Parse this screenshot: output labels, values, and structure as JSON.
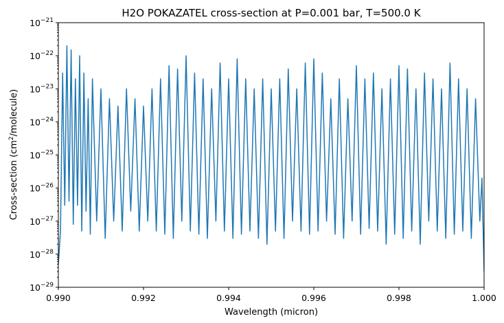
{
  "chart_data": {
    "type": "line",
    "title": "H2O POKAZATEL cross-section at P=0.001 bar, T=500.0 K",
    "xlabel": "Wavelength (micron)",
    "ylabel_main": "Cross-section (cm",
    "ylabel_sup": "2",
    "ylabel_tail": "/molecule)",
    "xlim": [
      0.99,
      1.0
    ],
    "ylim": [
      1e-29,
      1e-21
    ],
    "yscale": "log",
    "grid": false,
    "line_color": "#1f77b4",
    "x_ticks": [
      {
        "value": 0.99,
        "label": "0.990"
      },
      {
        "value": 0.992,
        "label": "0.992"
      },
      {
        "value": 0.994,
        "label": "0.994"
      },
      {
        "value": 0.996,
        "label": "0.996"
      },
      {
        "value": 0.998,
        "label": "0.998"
      },
      {
        "value": 1.0,
        "label": "1.000"
      }
    ],
    "y_ticks": [
      {
        "exp": -29,
        "base": "10",
        "sup": "−29"
      },
      {
        "exp": -28,
        "base": "10",
        "sup": "−28"
      },
      {
        "exp": -27,
        "base": "10",
        "sup": "−27"
      },
      {
        "exp": -26,
        "base": "10",
        "sup": "−26"
      },
      {
        "exp": -25,
        "base": "10",
        "sup": "−25"
      },
      {
        "exp": -24,
        "base": "10",
        "sup": "−24"
      },
      {
        "exp": -23,
        "base": "10",
        "sup": "−23"
      },
      {
        "exp": -22,
        "base": "10",
        "sup": "−22"
      },
      {
        "exp": -21,
        "base": "10",
        "sup": "−21"
      }
    ],
    "series": [
      {
        "x": [
          0.99,
          0.99005,
          0.9901,
          0.99015,
          0.9902,
          0.99025,
          0.9903,
          0.99035,
          0.9904,
          0.99045,
          0.9905,
          0.99055,
          0.9906,
          0.99065,
          0.9907,
          0.99075,
          0.9908,
          0.9909,
          0.991,
          0.9911,
          0.9912,
          0.9913,
          0.9914,
          0.9915,
          0.9916,
          0.9917,
          0.9918,
          0.9919,
          0.992,
          0.9921,
          0.9922,
          0.9923,
          0.9924,
          0.9925,
          0.9926,
          0.9927,
          0.9928,
          0.9929,
          0.993,
          0.9931,
          0.9932,
          0.9933,
          0.9934,
          0.9935,
          0.9936,
          0.9937,
          0.9938,
          0.9939,
          0.994,
          0.9941,
          0.9942,
          0.9943,
          0.9944,
          0.9945,
          0.9946,
          0.9947,
          0.9948,
          0.9949,
          0.995,
          0.9951,
          0.9952,
          0.9953,
          0.9954,
          0.9955,
          0.9956,
          0.9957,
          0.9958,
          0.9959,
          0.996,
          0.9961,
          0.9962,
          0.9963,
          0.9964,
          0.9965,
          0.9966,
          0.9967,
          0.9968,
          0.9969,
          0.997,
          0.9971,
          0.9972,
          0.9973,
          0.9974,
          0.9975,
          0.9976,
          0.9977,
          0.9978,
          0.9979,
          0.998,
          0.9981,
          0.9982,
          0.9983,
          0.9984,
          0.9985,
          0.9986,
          0.9987,
          0.9988,
          0.9989,
          0.999,
          0.9991,
          0.9992,
          0.9993,
          0.9994,
          0.9995,
          0.9996,
          0.9997,
          0.9998,
          0.9999,
          0.99995,
          1.0
        ],
        "y": [
          5e-29,
          5e-28,
          3e-23,
          3e-27,
          2e-22,
          4e-27,
          1.5e-22,
          8e-28,
          2e-23,
          3e-27,
          1e-22,
          5e-28,
          3e-23,
          2e-27,
          5e-24,
          4e-28,
          2e-23,
          1e-27,
          1e-23,
          3e-28,
          5e-24,
          1e-27,
          3e-24,
          5e-28,
          1e-23,
          2e-27,
          5e-24,
          5e-28,
          3e-24,
          1e-27,
          1e-23,
          5e-28,
          2e-23,
          4e-28,
          5e-23,
          3e-28,
          4e-23,
          1e-27,
          1e-22,
          5e-28,
          3e-23,
          4e-28,
          2e-23,
          3e-28,
          1e-23,
          1e-27,
          6e-23,
          5e-28,
          2e-23,
          3e-28,
          8e-23,
          4e-28,
          2e-23,
          5e-28,
          1e-23,
          3e-28,
          2e-23,
          2e-28,
          1e-23,
          5e-28,
          2e-23,
          3e-28,
          4e-23,
          1e-27,
          1e-23,
          5e-28,
          6e-23,
          4e-28,
          8e-23,
          5e-28,
          3e-23,
          1e-27,
          5e-24,
          4e-28,
          2e-23,
          3e-28,
          5e-24,
          1e-27,
          5e-23,
          4e-28,
          2e-23,
          6e-28,
          3e-23,
          5e-28,
          1e-23,
          2e-28,
          2e-23,
          4e-28,
          5e-23,
          3e-28,
          4e-23,
          5e-28,
          1e-23,
          2e-28,
          3e-23,
          1e-27,
          2e-23,
          5e-28,
          1e-23,
          3e-28,
          6e-23,
          4e-28,
          2e-23,
          5e-28,
          1e-23,
          3e-28,
          5e-24,
          1e-27,
          2e-26,
          3e-29
        ]
      }
    ]
  }
}
